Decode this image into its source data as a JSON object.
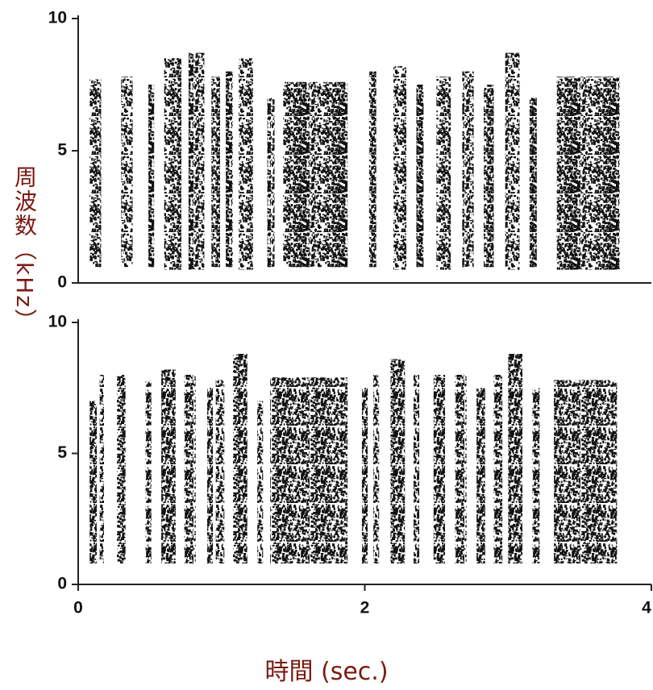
{
  "chart_data": [
    {
      "type": "spectrogram",
      "ylabel": "周波数（kHz）",
      "xlim": [
        0,
        4
      ],
      "ylim": [
        0,
        10
      ],
      "yticks": [
        0,
        5,
        10
      ],
      "start": [
        0.08,
        0.3,
        0.49,
        0.6,
        0.77,
        0.93,
        1.03,
        1.12,
        1.32,
        1.43,
        2.03,
        2.2,
        2.36,
        2.5,
        2.68,
        2.83,
        2.98,
        3.15,
        3.34
      ],
      "end": [
        0.16,
        0.38,
        0.53,
        0.72,
        0.88,
        0.99,
        1.08,
        1.22,
        1.37,
        1.88,
        2.08,
        2.29,
        2.41,
        2.6,
        2.76,
        2.9,
        3.08,
        3.2,
        3.78
      ],
      "low": [
        0.6,
        0.6,
        0.6,
        0.5,
        0.5,
        0.6,
        0.6,
        0.5,
        0.6,
        0.6,
        0.6,
        0.5,
        0.6,
        0.5,
        0.6,
        0.6,
        0.5,
        0.6,
        0.5
      ],
      "high": [
        7.7,
        7.8,
        7.5,
        8.5,
        8.7,
        7.8,
        8.0,
        8.5,
        7.0,
        7.6,
        8.0,
        8.2,
        7.5,
        7.8,
        8.0,
        7.5,
        8.7,
        7.0,
        7.8
      ],
      "color": "#111111"
    },
    {
      "type": "spectrogram",
      "xlabel": "時間 (sec.)",
      "xlim": [
        0,
        4
      ],
      "xticks": [
        0,
        2,
        4
      ],
      "ylim": [
        0,
        10
      ],
      "yticks": [
        0,
        5,
        10
      ],
      "start": [
        0.08,
        0.15,
        0.27,
        0.47,
        0.58,
        0.74,
        0.9,
        0.96,
        1.08,
        1.25,
        1.34,
        1.98,
        2.06,
        2.18,
        2.34,
        2.48,
        2.63,
        2.78,
        2.9,
        3.0,
        3.17,
        3.32
      ],
      "end": [
        0.13,
        0.18,
        0.33,
        0.51,
        0.68,
        0.82,
        0.94,
        1.02,
        1.18,
        1.29,
        1.88,
        2.02,
        2.1,
        2.28,
        2.38,
        2.56,
        2.71,
        2.84,
        2.96,
        3.1,
        3.22,
        3.76
      ],
      "low": [
        0.8,
        0.8,
        0.8,
        0.8,
        0.8,
        0.8,
        0.8,
        0.8,
        0.8,
        0.8,
        0.8,
        0.8,
        0.8,
        0.8,
        0.8,
        0.8,
        0.8,
        0.8,
        0.8,
        0.8,
        0.8,
        0.8
      ],
      "high": [
        7.0,
        8.0,
        8.0,
        7.8,
        8.2,
        8.0,
        7.5,
        7.8,
        8.8,
        7.0,
        7.9,
        7.5,
        8.0,
        8.6,
        8.0,
        8.0,
        8.0,
        7.5,
        8.0,
        8.8,
        7.5,
        7.8
      ],
      "color": "#111111"
    }
  ]
}
